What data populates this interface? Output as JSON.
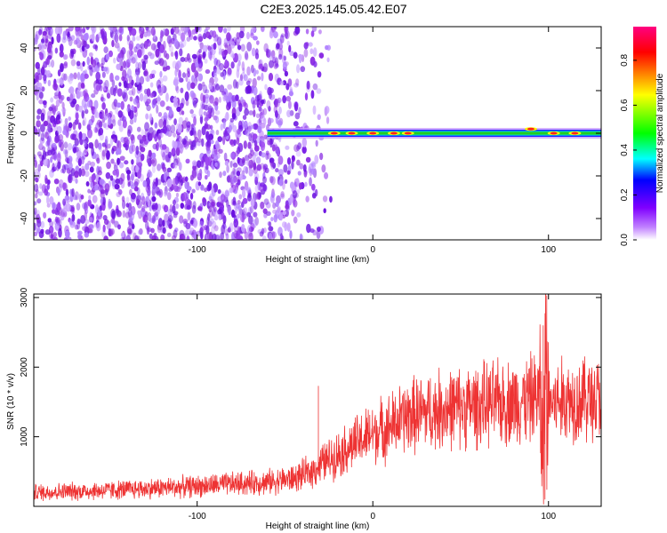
{
  "title": "C2E3.2025.145.05.42.E07",
  "chart_data": [
    {
      "type": "heatmap",
      "title": "C2E3.2025.145.05.42.E07",
      "xlabel": "Height of straight line (km)",
      "ylabel": "Frequency (Hz)",
      "xlim": [
        -193,
        130
      ],
      "ylim": [
        -50,
        50
      ],
      "xticks": [
        -100,
        0,
        100
      ],
      "yticks": [
        -40,
        -20,
        0,
        20,
        40
      ],
      "colorbar": {
        "label": "Normalized spectral amplitude",
        "range": [
          0.0,
          0.95
        ],
        "ticks": [
          0.0,
          0.2,
          0.4,
          0.6,
          0.8
        ],
        "colormap": [
          "#ffffff",
          "#c080ff",
          "#8000ff",
          "#0000ff",
          "#00ffff",
          "#00ff00",
          "#ffff00",
          "#ff8000",
          "#ff0000",
          "#ff0080"
        ]
      },
      "noise_region_x": [
        -193,
        -35
      ],
      "signal_band": {
        "x_start": -60,
        "x_end": 130,
        "frequency": 0
      },
      "hotspots": [
        {
          "x": -22,
          "y": 0
        },
        {
          "x": -12,
          "y": 0
        },
        {
          "x": 0,
          "y": 0
        },
        {
          "x": 12,
          "y": 0
        },
        {
          "x": 20,
          "y": 0
        },
        {
          "x": 90,
          "y": 2
        },
        {
          "x": 103,
          "y": 0
        },
        {
          "x": 115,
          "y": 0
        }
      ]
    },
    {
      "type": "line",
      "xlabel": "Height of straight line (km)",
      "ylabel": "SNR (10 * v/v)",
      "xlim": [
        -193,
        130
      ],
      "ylim": [
        0,
        3050
      ],
      "xticks": [
        -100,
        0,
        100
      ],
      "yticks": [
        1000,
        2000,
        3000
      ],
      "color": "#ee3333",
      "x": [
        -193,
        -150,
        -100,
        -60,
        -45,
        -35,
        -30,
        -20,
        -10,
        0,
        10,
        20,
        40,
        60,
        80,
        90,
        95,
        97,
        98,
        100,
        105,
        115,
        130
      ],
      "y": [
        200,
        230,
        290,
        350,
        400,
        500,
        600,
        750,
        900,
        1050,
        1150,
        1300,
        1400,
        1450,
        1500,
        1550,
        1600,
        700,
        1800,
        1500,
        1500,
        1550,
        1550
      ],
      "spikes": [
        {
          "x": -31,
          "y": 1730
        },
        {
          "x": 97,
          "y": 2600
        },
        {
          "x": 99,
          "y": 3030
        },
        {
          "x": 98,
          "y": 100
        }
      ]
    }
  ]
}
